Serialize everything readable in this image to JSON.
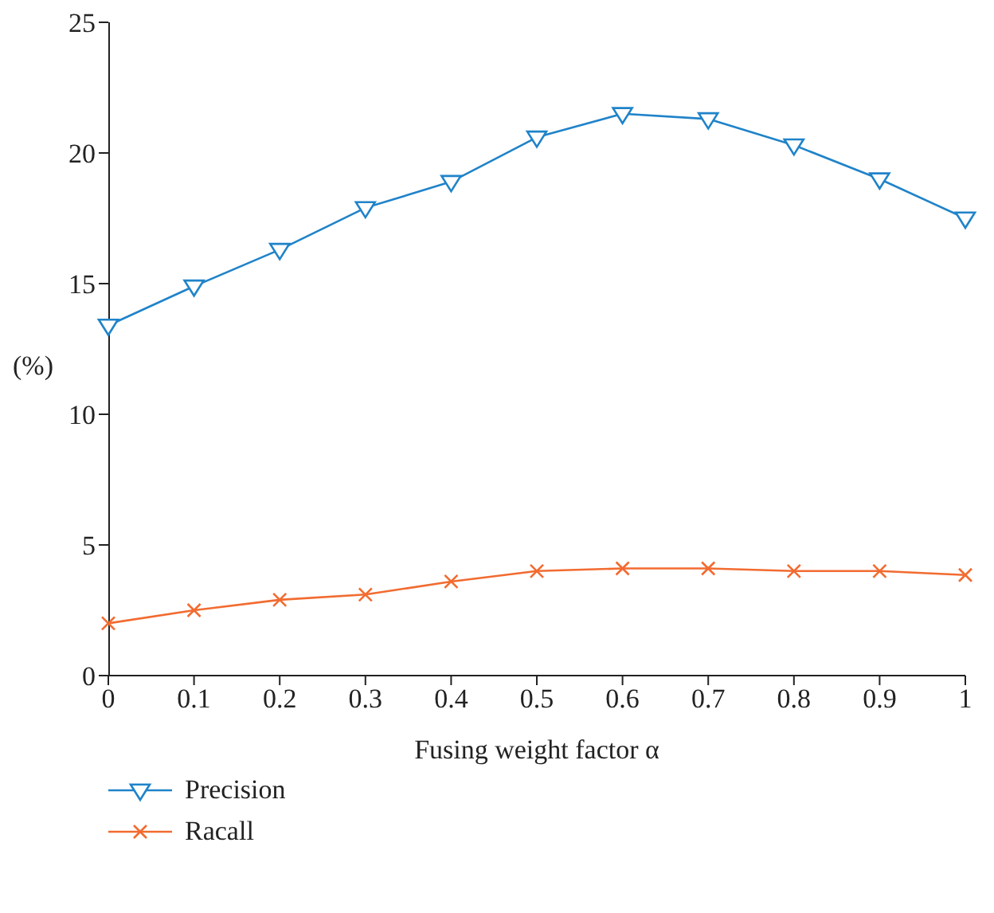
{
  "chart_data": {
    "type": "line",
    "xlabel": "Fusing weight factor α",
    "ylabel": "(%)",
    "x": [
      0,
      0.1,
      0.2,
      0.3,
      0.4,
      0.5,
      0.6,
      0.7,
      0.8,
      0.9,
      1
    ],
    "series": [
      {
        "name": "Precision",
        "color": "#1f83c9",
        "marker": "triangle",
        "values": [
          13.4,
          14.9,
          16.3,
          17.9,
          18.9,
          20.6,
          21.5,
          21.3,
          20.3,
          19.0,
          17.5
        ]
      },
      {
        "name": "Racall",
        "color": "#f26b30",
        "marker": "cross",
        "values": [
          2.0,
          2.5,
          2.9,
          3.1,
          3.6,
          4.0,
          4.1,
          4.1,
          4.0,
          4.0,
          3.85
        ]
      }
    ],
    "xlim": [
      0,
      1
    ],
    "xticks": [
      0,
      {
        "value": 0.1,
        "label": "0.1"
      },
      {
        "value": 0.2,
        "label": "0.2"
      },
      {
        "value": 0.3,
        "label": "0.3"
      },
      {
        "value": 0.4,
        "label": "0.4"
      },
      {
        "value": 0.5,
        "label": "0.5"
      },
      {
        "value": 0.6,
        "label": "0.6"
      },
      {
        "value": 0.7,
        "label": "0.7"
      },
      {
        "value": 0.8,
        "label": "0.8"
      },
      {
        "value": 0.9,
        "label": "0.9"
      },
      1
    ],
    "ylim": [
      0,
      25
    ],
    "yticks": [
      0,
      5,
      10,
      15,
      20,
      25
    ],
    "grid": false,
    "legend": "bottom left",
    "line_style": "solid"
  }
}
